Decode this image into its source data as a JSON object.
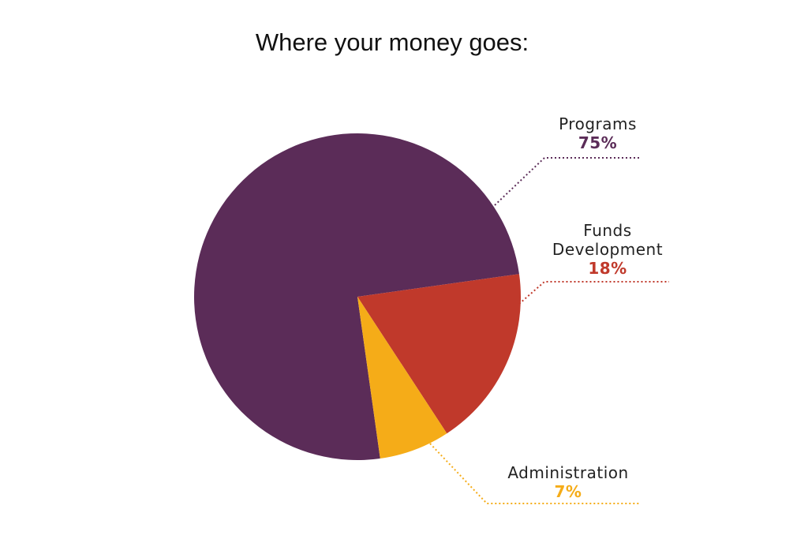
{
  "chart_data": {
    "type": "pie",
    "title": "Where your money goes:",
    "categories": [
      "Programs",
      "Funds Development",
      "Administration"
    ],
    "values": [
      75,
      18,
      7
    ],
    "value_labels": [
      "75%",
      "18%",
      "7%"
    ],
    "colors": [
      "#5b2c58",
      "#c0392b",
      "#f5ac18"
    ]
  }
}
